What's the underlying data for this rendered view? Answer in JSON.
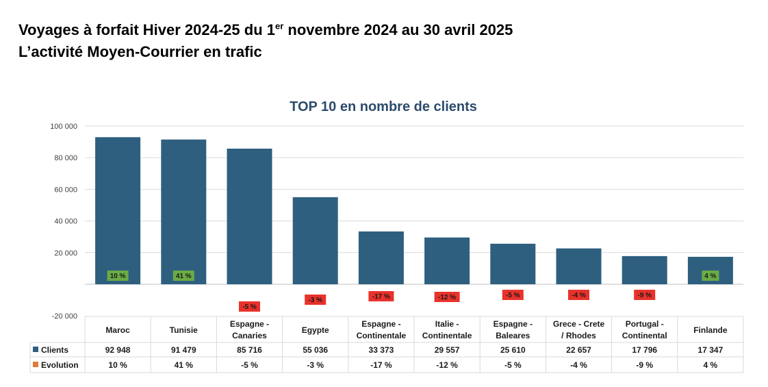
{
  "header": {
    "line1_pre": "Voyages à forfait Hiver 2024-25 du 1",
    "line1_sup": "er",
    "line1_post": " novembre 2024 au 30 avril 2025",
    "line2": "L’activité Moyen-Courrier en trafic"
  },
  "chart_data": {
    "type": "bar",
    "title": "TOP 10 en nombre de clients",
    "categories": [
      [
        "Maroc"
      ],
      [
        "Tunisie"
      ],
      [
        "Espagne -",
        "Canaries"
      ],
      [
        "Egypte"
      ],
      [
        "Espagne -",
        "Continentale"
      ],
      [
        "Italie -",
        "Continentale"
      ],
      [
        "Espagne -",
        "Baleares"
      ],
      [
        "Grece - Crete",
        "/ Rhodes"
      ],
      [
        "Portugal -",
        "Continental"
      ],
      [
        "Finlande"
      ]
    ],
    "series": [
      {
        "name": "Clients",
        "color": "#2e5f7f",
        "values": [
          92948,
          91479,
          85716,
          55036,
          33373,
          29557,
          25610,
          22657,
          17796,
          17347
        ],
        "labels": [
          "92 948",
          "91 479",
          "85 716",
          "55 036",
          "33 373",
          "29 557",
          "25 610",
          "22 657",
          "17 796",
          "17 347"
        ]
      },
      {
        "name": "Evolution",
        "color": "#e07b39",
        "values": [
          10,
          41,
          -5,
          -3,
          -17,
          -12,
          -5,
          -4,
          -9,
          4
        ],
        "labels": [
          "10 %",
          "41 %",
          "-5 %",
          "-3 %",
          "-17 %",
          "-12 %",
          "-5 %",
          "-4 %",
          "-9 %",
          "4 %"
        ]
      }
    ],
    "yticks": [
      100000,
      80000,
      60000,
      40000,
      20000,
      -20000
    ],
    "ytick_labels": [
      "100 000",
      "80 000",
      "60 000",
      "40 000",
      "20 000",
      "-20 000"
    ],
    "ylim": [
      -20000,
      100000
    ],
    "grid": true,
    "positive_badge_color": "#6aab45",
    "negative_badge_color": "#e8322b",
    "legend_placement": "data-table"
  }
}
